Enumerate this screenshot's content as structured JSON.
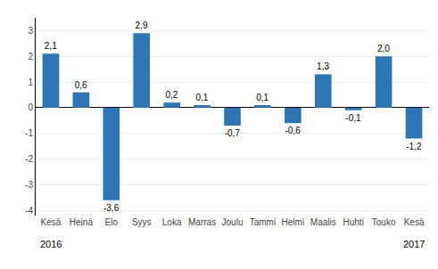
{
  "chart_data": {
    "type": "bar",
    "categories": [
      "Kesä",
      "Heinä",
      "Elo",
      "Syys",
      "Loka",
      "Marras",
      "Joulu",
      "Tammi",
      "Helmi",
      "Maalis",
      "Huhti",
      "Touko",
      "Kesä"
    ],
    "values": [
      2.1,
      0.6,
      -3.6,
      2.9,
      0.2,
      0.1,
      -0.7,
      0.1,
      -0.6,
      1.3,
      -0.1,
      2.0,
      -1.2
    ],
    "value_labels": [
      "2,1",
      "0,6",
      "-3,6",
      "2,9",
      "0,2",
      "0,1",
      "-0,7",
      "0,1",
      "-0,6",
      "1,3",
      "-0,1",
      "2,0",
      "-1,2"
    ],
    "data_labels": true,
    "color": "#2e75b6",
    "ylim": [
      -4.2,
      3.5
    ],
    "yticks": [
      -4,
      -3,
      -2,
      -1,
      0,
      1,
      2,
      3
    ],
    "grid": true,
    "annotations": [
      {
        "text": "2016",
        "category_index": 0
      },
      {
        "text": "2017",
        "category_index": 12
      }
    ]
  }
}
